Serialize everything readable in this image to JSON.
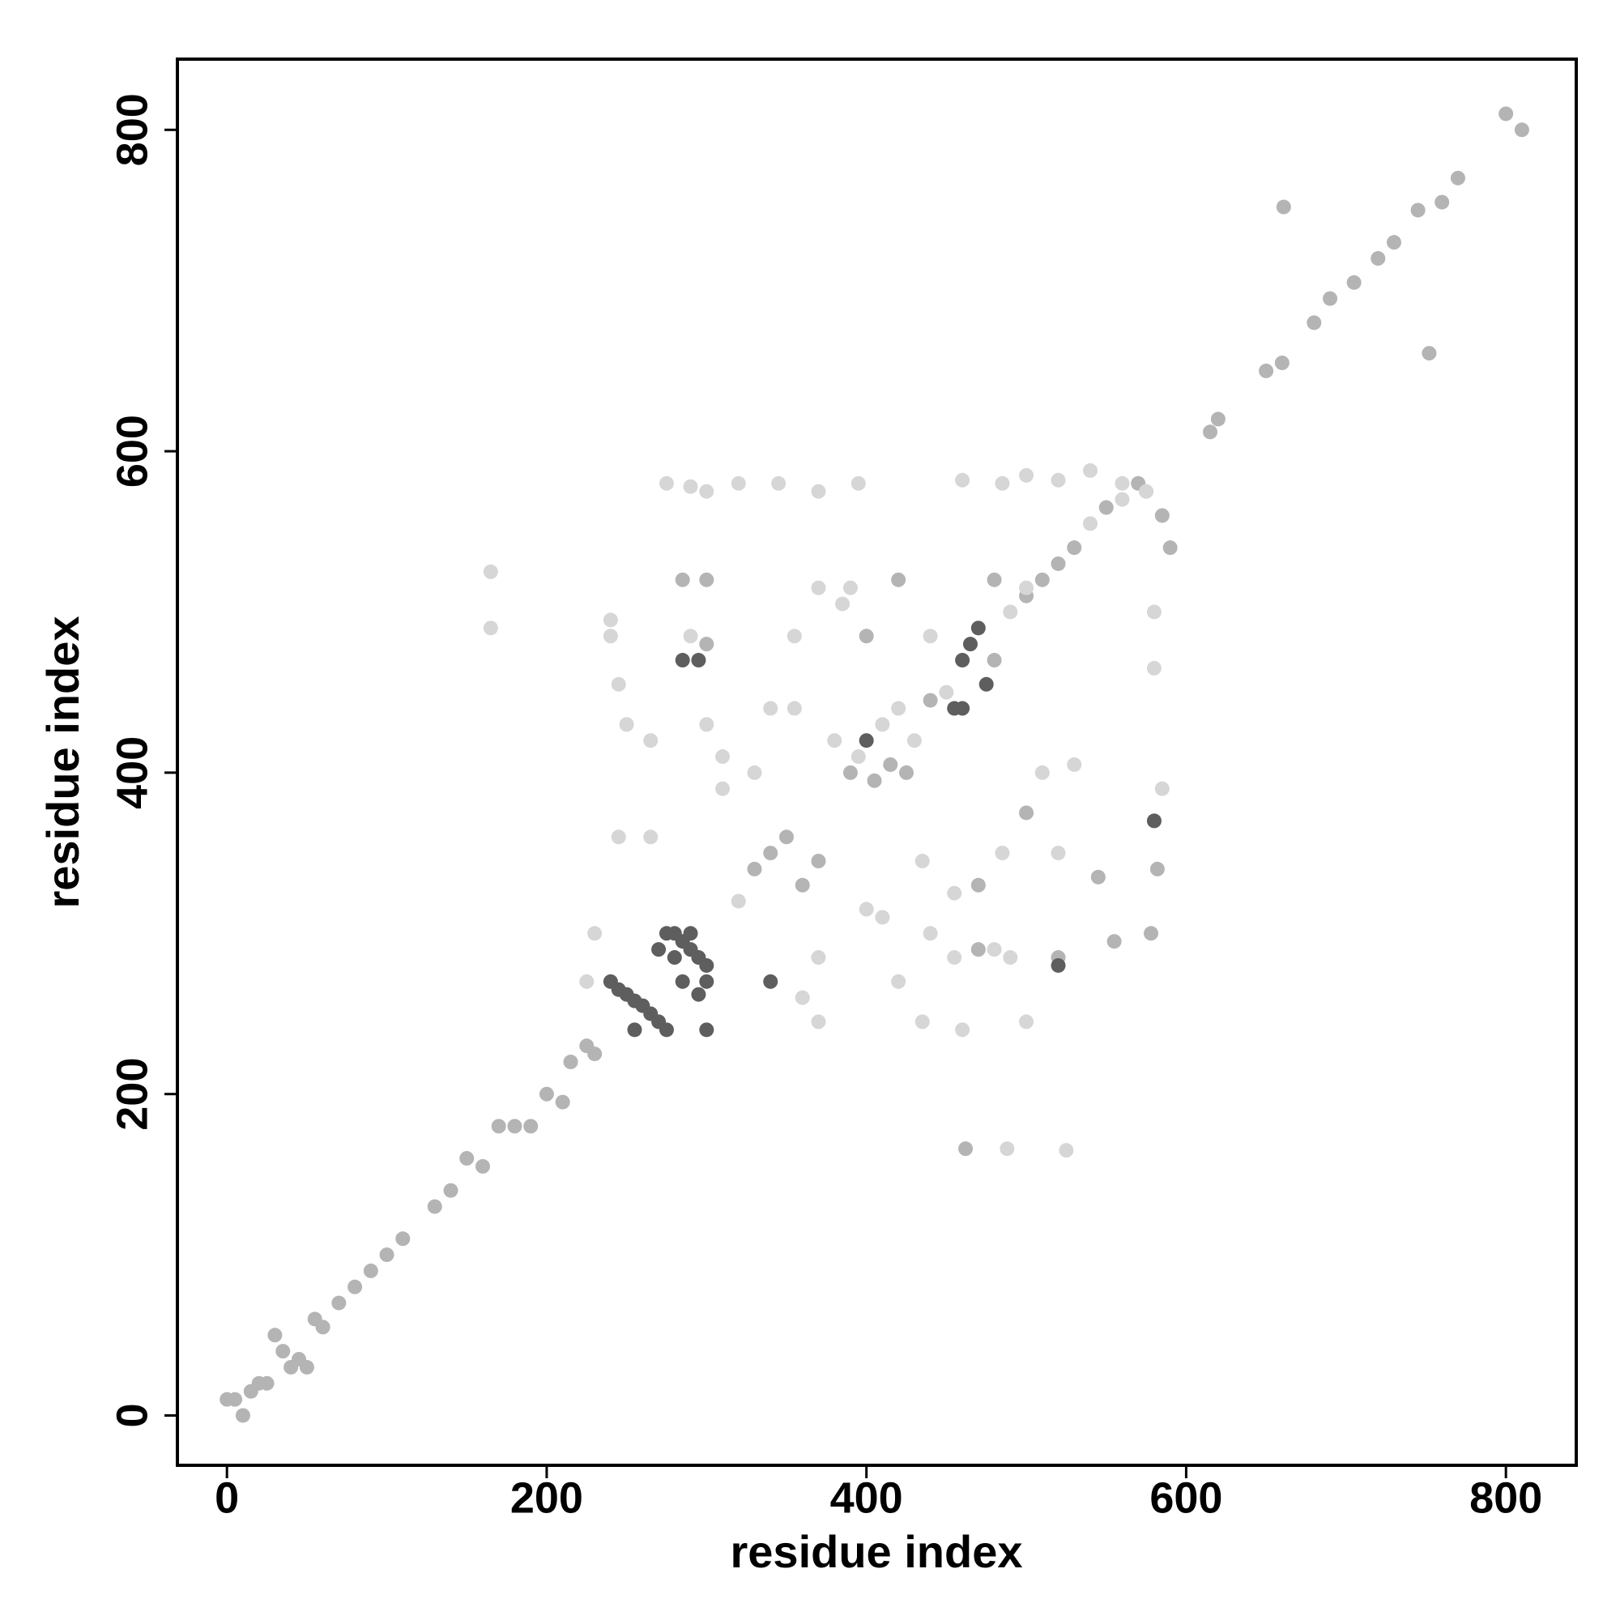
{
  "chart_data": {
    "type": "scatter",
    "xlabel": "residue index",
    "ylabel": "residue index",
    "xlim": [
      -31,
      844
    ],
    "ylim": [
      -31,
      844
    ],
    "xticks": [
      0,
      200,
      400,
      600,
      800
    ],
    "yticks": [
      0,
      200,
      400,
      600,
      800
    ],
    "series": [
      {
        "color": "#b4b4b4",
        "x": [
          0,
          5,
          10,
          15,
          20,
          25,
          30,
          35,
          40,
          45,
          50,
          55,
          60,
          70,
          80,
          90,
          100,
          110,
          130,
          140,
          150,
          160,
          170,
          180,
          190,
          200,
          210,
          215,
          225,
          230,
          800,
          810,
          770,
          760,
          745,
          730,
          720,
          705,
          690,
          680,
          650,
          660,
          620,
          615,
          752,
          661,
          462,
          330,
          340,
          350,
          360,
          370,
          390,
          405,
          415,
          425,
          440,
          480,
          500,
          510,
          520,
          530,
          550,
          570,
          585,
          590,
          285,
          300,
          420,
          480,
          300,
          400,
          580,
          582,
          578,
          470,
          520,
          555,
          545,
          470,
          500
        ],
        "values": [
          10,
          10,
          0,
          15,
          20,
          20,
          50,
          40,
          30,
          35,
          30,
          60,
          55,
          70,
          80,
          90,
          100,
          110,
          130,
          140,
          160,
          155,
          180,
          180,
          180,
          200,
          195,
          220,
          230,
          225,
          810,
          800,
          770,
          755,
          750,
          730,
          720,
          705,
          695,
          680,
          650,
          655,
          620,
          612,
          661,
          752,
          166,
          340,
          350,
          360,
          330,
          345,
          400,
          395,
          405,
          400,
          445,
          470,
          510,
          520,
          530,
          540,
          565,
          580,
          560,
          540,
          520,
          480,
          520,
          520,
          520,
          485,
          370,
          340,
          300,
          290,
          285,
          295,
          335,
          330,
          375
        ]
      },
      {
        "color": "#d6d6d6",
        "x": [
          165,
          165,
          488,
          525,
          320,
          380,
          395,
          410,
          420,
          430,
          450,
          490,
          540,
          560,
          575,
          580,
          275,
          290,
          300,
          320,
          345,
          370,
          395,
          460,
          485,
          500,
          520,
          540,
          560,
          575,
          370,
          390,
          500,
          240,
          290,
          355,
          440,
          585,
          580,
          455,
          480,
          490,
          500,
          460,
          435,
          230,
          245,
          265,
          310,
          330,
          340,
          355,
          360,
          370,
          400,
          410,
          420,
          435,
          440,
          455,
          485,
          510,
          520,
          530,
          300,
          310,
          250,
          245,
          265,
          240,
          385,
          370,
          225
        ],
        "values": [
          525,
          490,
          166,
          165,
          320,
          420,
          410,
          430,
          440,
          420,
          450,
          500,
          555,
          570,
          575,
          500,
          580,
          578,
          575,
          580,
          580,
          575,
          580,
          582,
          580,
          585,
          582,
          588,
          580,
          575,
          515,
          515,
          515,
          485,
          485,
          485,
          485,
          390,
          465,
          285,
          290,
          285,
          245,
          240,
          245,
          300,
          360,
          360,
          410,
          400,
          440,
          440,
          260,
          245,
          315,
          310,
          270,
          345,
          300,
          325,
          350,
          400,
          350,
          405,
          430,
          390,
          430,
          455,
          420,
          495,
          505,
          285,
          270
        ]
      },
      {
        "color": "#5e5e5e",
        "x": [
          240,
          245,
          250,
          255,
          260,
          265,
          270,
          275,
          280,
          285,
          290,
          295,
          300,
          300,
          295,
          285,
          280,
          270,
          275,
          290,
          400,
          455,
          460,
          465,
          470,
          475,
          460,
          285,
          295,
          340,
          580,
          520,
          300,
          255
        ],
        "values": [
          270,
          265,
          262,
          258,
          255,
          250,
          245,
          240,
          300,
          295,
          290,
          285,
          280,
          270,
          262,
          270,
          285,
          290,
          300,
          300,
          420,
          440,
          470,
          480,
          490,
          455,
          440,
          470,
          470,
          270,
          370,
          280,
          240,
          240
        ]
      }
    ]
  }
}
